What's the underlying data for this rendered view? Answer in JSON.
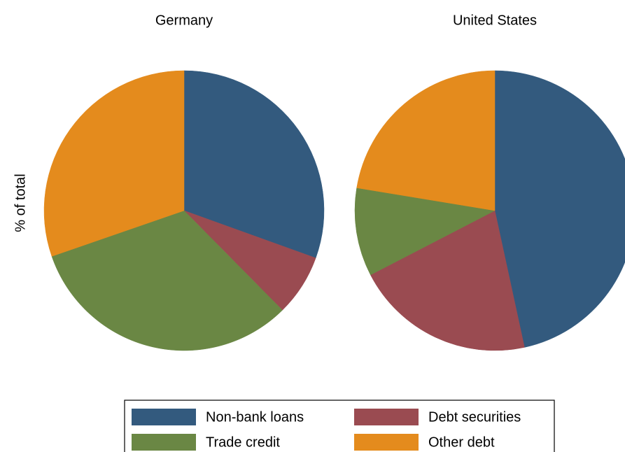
{
  "chart_data": {
    "type": "pie",
    "ylabel": "% of total",
    "categories": [
      "Non-bank loans",
      "Debt securities",
      "Trade credit",
      "Other debt"
    ],
    "colors": [
      "#335a7e",
      "#9a4b51",
      "#6a8744",
      "#e48b1d"
    ],
    "series": [
      {
        "name": "Germany",
        "values": [
          30.5,
          7.1,
          32.1,
          30.3
        ]
      },
      {
        "name": "United States",
        "values": [
          46.6,
          20.8,
          10.2,
          22.4
        ]
      }
    ]
  }
}
